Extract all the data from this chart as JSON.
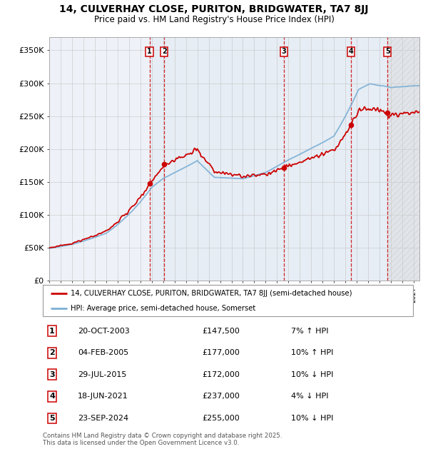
{
  "title": "14, CULVERHAY CLOSE, PURITON, BRIDGWATER, TA7 8JJ",
  "subtitle": "Price paid vs. HM Land Registry's House Price Index (HPI)",
  "ylabel_ticks": [
    "£0",
    "£50K",
    "£100K",
    "£150K",
    "£200K",
    "£250K",
    "£300K",
    "£350K"
  ],
  "ytick_values": [
    0,
    50000,
    100000,
    150000,
    200000,
    250000,
    300000,
    350000
  ],
  "ylim": [
    0,
    370000
  ],
  "xlim_start": 1995.0,
  "xlim_end": 2027.5,
  "sale_color": "#cc0000",
  "hpi_color": "#7bafd4",
  "sale_label": "14, CULVERHAY CLOSE, PURITON, BRIDGWATER, TA7 8JJ (semi-detached house)",
  "hpi_label": "HPI: Average price, semi-detached house, Somerset",
  "transactions": [
    {
      "id": 1,
      "date": "20-OCT-2003",
      "price": 147500,
      "pct": "7%",
      "dir": "↑",
      "year": 2003.8
    },
    {
      "id": 2,
      "date": "04-FEB-2005",
      "price": 177000,
      "pct": "10%",
      "dir": "↑",
      "year": 2005.1
    },
    {
      "id": 3,
      "date": "29-JUL-2015",
      "price": 172000,
      "pct": "10%",
      "dir": "↓",
      "year": 2015.6
    },
    {
      "id": 4,
      "date": "18-JUN-2021",
      "price": 237000,
      "pct": "4%",
      "dir": "↓",
      "year": 2021.5
    },
    {
      "id": 5,
      "date": "23-SEP-2024",
      "price": 255000,
      "pct": "10%",
      "dir": "↓",
      "year": 2024.7
    }
  ],
  "footer": "Contains HM Land Registry data © Crown copyright and database right 2025.\nThis data is licensed under the Open Government Licence v3.0.",
  "background_color": "#ffffff",
  "plot_bg_color": "#eef2f8",
  "grid_color": "#cccccc",
  "shade_color": "#d8e4f0",
  "hatch_color": "#cccccc"
}
